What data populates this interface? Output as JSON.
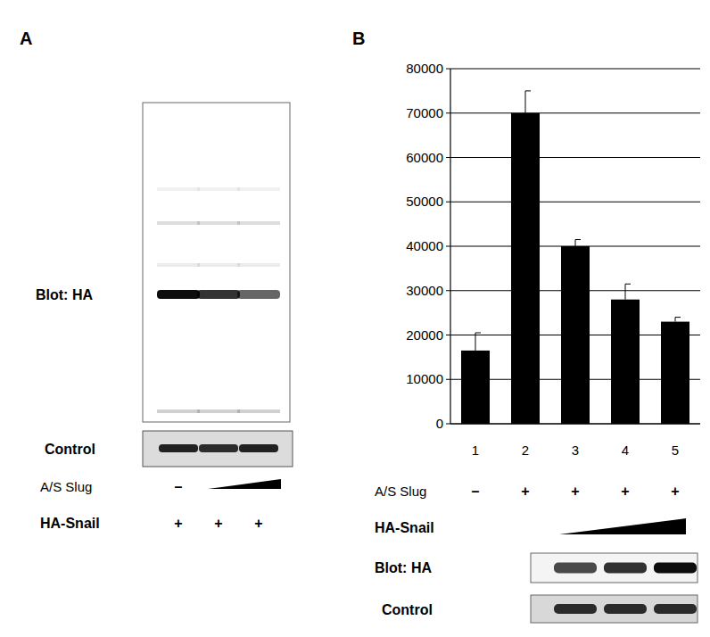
{
  "chart_data": {
    "type": "bar",
    "categories": [
      "1",
      "2",
      "3",
      "4",
      "5"
    ],
    "values": [
      16500,
      70000,
      40000,
      28000,
      23000
    ],
    "errors": [
      4000,
      5000,
      1500,
      3500,
      1000
    ],
    "color": "#000000",
    "ylim": [
      0,
      80000
    ],
    "yticks": [
      0,
      10000,
      20000,
      30000,
      40000,
      50000,
      60000,
      70000,
      80000
    ],
    "grid": true
  },
  "panel_a": {
    "label": "A",
    "blot": {
      "label": "Blot: HA",
      "band_intensity": [
        0.95,
        0.8,
        0.6
      ]
    },
    "control": {
      "label": "Control",
      "band_intensity": [
        0.85,
        0.8,
        0.85
      ]
    },
    "a_s_slug": {
      "label": "A/S Slug",
      "signs": [
        "–",
        null,
        null
      ],
      "wedge_lanes": [
        2,
        3
      ]
    },
    "ha_snail": {
      "label": "HA-Snail",
      "signs": [
        "+",
        "+",
        "+"
      ]
    }
  },
  "panel_b": {
    "label": "B",
    "a_s_slug": {
      "label": "A/S Slug",
      "signs": [
        "–",
        "+",
        "+",
        "+",
        "+"
      ]
    },
    "ha_snail": {
      "label": "HA-Snail",
      "wedge_lanes": [
        3,
        5
      ]
    },
    "blot": {
      "label": "Blot: HA",
      "lanes": [
        3,
        4,
        5
      ],
      "band_intensity": [
        0.7,
        0.8,
        0.95
      ]
    },
    "control": {
      "label": "Control",
      "lanes": [
        3,
        4,
        5
      ],
      "band_intensity": [
        0.8,
        0.8,
        0.8
      ]
    }
  }
}
